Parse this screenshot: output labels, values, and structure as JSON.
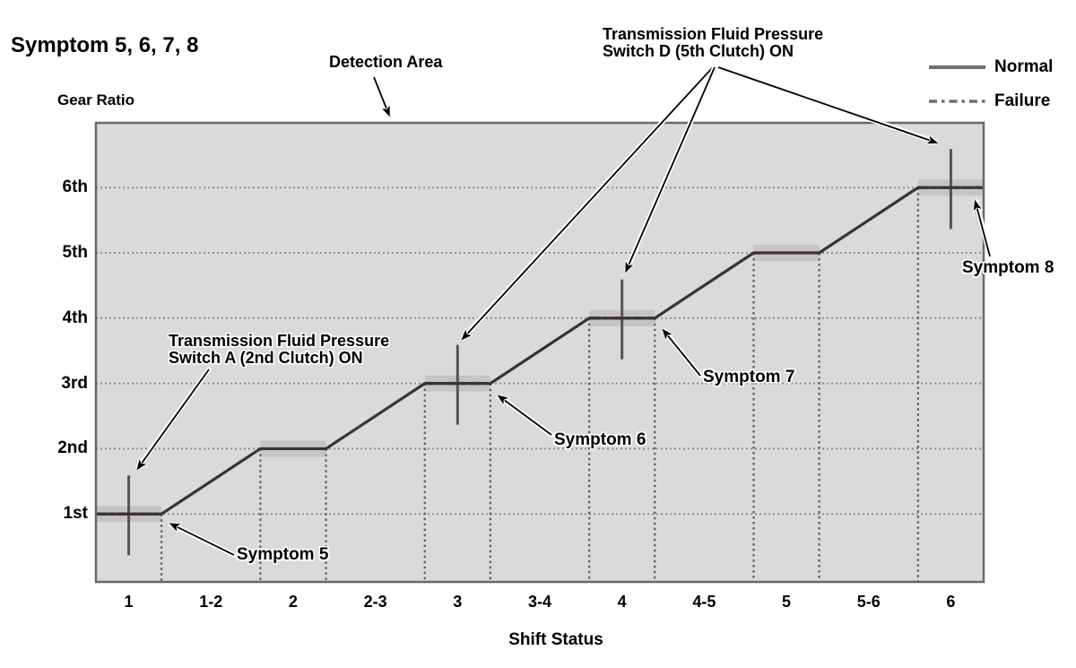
{
  "title": "Symptom 5, 6, 7, 8",
  "axes": {
    "y_title": "Gear Ratio",
    "x_title": "Shift Status",
    "y_ticks": [
      "1st",
      "2nd",
      "3rd",
      "4th",
      "5th",
      "6th"
    ],
    "x_ticks": [
      "1",
      "1-2",
      "2",
      "2-3",
      "3",
      "3-4",
      "4",
      "4-5",
      "5",
      "5-6",
      "6"
    ]
  },
  "legend": {
    "normal_label": "Normal",
    "failure_label": "Failure"
  },
  "annotations": {
    "detection_area": "Detection Area",
    "switch_d_line1": "Transmission Fluid Pressure",
    "switch_d_line2": "Switch D (5th Clutch) ON",
    "switch_a_line1": "Transmission Fluid Pressure",
    "switch_a_line2": "Switch A (2nd Clutch) ON",
    "symptom_5": "Symptom 5",
    "symptom_6": "Symptom 6",
    "symptom_7": "Symptom 7",
    "symptom_8": "Symptom 8"
  },
  "colors": {
    "plot_background": "#dadadb",
    "plot_border": "#6b6768",
    "normal_line": "#3a3335",
    "failure_line": "#3a3335",
    "switch_signal_line": "#575253",
    "gridline": "#8f8d8f",
    "boundary_dash": "#5f5b5c",
    "highlight_band": "#c5c5c6",
    "legend_line": "#6e6e6e",
    "text": "#000000"
  },
  "chart_data": {
    "type": "line",
    "title": "Symptom 5, 6, 7, 8",
    "xlabel": "Shift Status",
    "ylabel": "Gear Ratio",
    "grid": true,
    "legend_position": "top-right",
    "x_categories": [
      "1",
      "1-2",
      "2",
      "2-3",
      "3",
      "3-4",
      "4",
      "4-5",
      "5",
      "5-6",
      "6"
    ],
    "y_categories": [
      "1st",
      "2nd",
      "3rd",
      "4th",
      "5th",
      "6th"
    ],
    "normal_series": {
      "name": "Normal",
      "description": "Stepped gear-ratio line: holds each gear during a numbered shift status and ramps up one gear during each hyphenated shift status",
      "gear_at_status": [
        [
          1,
          1
        ],
        [
          1,
          2
        ],
        [
          2,
          2
        ],
        [
          2,
          3
        ],
        [
          3,
          3
        ],
        [
          3,
          4
        ],
        [
          4,
          4
        ],
        [
          4,
          5
        ],
        [
          5,
          5
        ],
        [
          5,
          6
        ],
        [
          6,
          6
        ]
      ]
    },
    "failure_segments": [
      {
        "status": "1",
        "gear": 1,
        "symptom": "Symptom 5"
      },
      {
        "status": "3",
        "gear": 3,
        "symptom": "Symptom 6"
      },
      {
        "status": "4",
        "gear": 4,
        "symptom": "Symptom 7"
      },
      {
        "status": "6",
        "gear": 6,
        "symptom": "Symptom 8"
      }
    ],
    "switch_signals": [
      {
        "status": "1",
        "gear": 1,
        "label": "Transmission Fluid Pressure Switch A (2nd Clutch) ON"
      },
      {
        "status": "3",
        "gear": 3,
        "label": "Transmission Fluid Pressure Switch D (5th Clutch) ON"
      },
      {
        "status": "4",
        "gear": 4,
        "label": "Transmission Fluid Pressure Switch D (5th Clutch) ON"
      },
      {
        "status": "6",
        "gear": 6,
        "label": "Transmission Fluid Pressure Switch D (5th Clutch) ON"
      }
    ],
    "highlight_flats": [
      {
        "status": "1",
        "gear": 1
      },
      {
        "status": "2",
        "gear": 2
      },
      {
        "status": "3",
        "gear": 3
      },
      {
        "status": "4",
        "gear": 4
      },
      {
        "status": "5",
        "gear": 5
      },
      {
        "status": "6",
        "gear": 6
      }
    ],
    "annotation_texts": [
      "Detection Area",
      "Transmission Fluid Pressure Switch D (5th Clutch) ON",
      "Transmission Fluid Pressure Switch A (2nd Clutch) ON",
      "Symptom 5",
      "Symptom 6",
      "Symptom 7",
      "Symptom 8"
    ]
  }
}
